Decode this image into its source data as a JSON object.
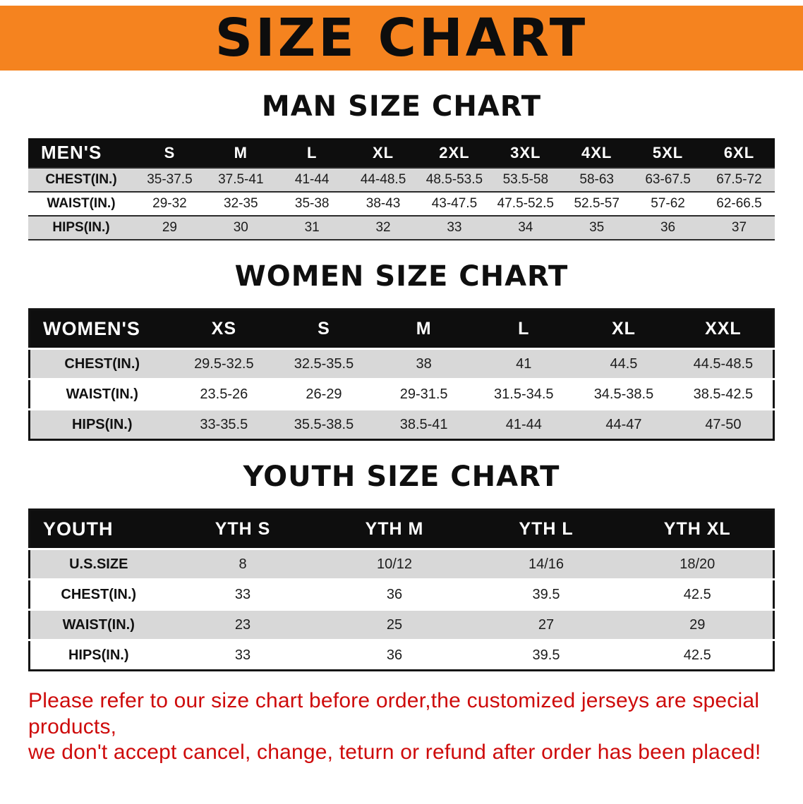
{
  "banner": {
    "title": "SIZE CHART"
  },
  "men": {
    "heading": "MAN SIZE CHART",
    "header": [
      "MEN'S",
      "S",
      "M",
      "L",
      "XL",
      "2XL",
      "3XL",
      "4XL",
      "5XL",
      "6XL"
    ],
    "rows": [
      [
        "CHEST(IN.)",
        "35-37.5",
        "37.5-41",
        "41-44",
        "44-48.5",
        "48.5-53.5",
        "53.5-58",
        "58-63",
        "63-67.5",
        "67.5-72"
      ],
      [
        "WAIST(IN.)",
        "29-32",
        "32-35",
        "35-38",
        "38-43",
        "43-47.5",
        "47.5-52.5",
        "52.5-57",
        "57-62",
        "62-66.5"
      ],
      [
        "HIPS(IN.)",
        "29",
        "30",
        "31",
        "32",
        "33",
        "34",
        "35",
        "36",
        "37"
      ]
    ]
  },
  "women": {
    "heading": "WOMEN SIZE CHART",
    "header": [
      "WOMEN'S",
      "XS",
      "S",
      "M",
      "L",
      "XL",
      "XXL"
    ],
    "rows": [
      [
        "CHEST(IN.)",
        "29.5-32.5",
        "32.5-35.5",
        "38",
        "41",
        "44.5",
        "44.5-48.5"
      ],
      [
        "WAIST(IN.)",
        "23.5-26",
        "26-29",
        "29-31.5",
        "31.5-34.5",
        "34.5-38.5",
        "38.5-42.5"
      ],
      [
        "HIPS(IN.)",
        "33-35.5",
        "35.5-38.5",
        "38.5-41",
        "41-44",
        "44-47",
        "47-50"
      ]
    ]
  },
  "youth": {
    "heading": "YOUTH SIZE CHART",
    "header": [
      "YOUTH",
      "YTH S",
      "YTH M",
      "YTH L",
      "YTH XL"
    ],
    "rows": [
      [
        "U.S.SIZE",
        "8",
        "10/12",
        "14/16",
        "18/20"
      ],
      [
        "CHEST(IN.)",
        "33",
        "36",
        "39.5",
        "42.5"
      ],
      [
        "WAIST(IN.)",
        "23",
        "25",
        "27",
        "29"
      ],
      [
        "HIPS(IN.)",
        "33",
        "36",
        "39.5",
        "42.5"
      ]
    ]
  },
  "disclaimer": {
    "line1": "Please refer to our size chart before order,the customized jerseys are special products,",
    "line2": "we don't accept cancel, change, teturn or refund after order has been placed!"
  },
  "colors": {
    "banner_bg": "#f5831f",
    "title_color": "#0d0d0d",
    "header_bg": "#0e0e0e",
    "row_gray": "#d8d8d8",
    "disclaimer_red": "#ce0b0b"
  }
}
